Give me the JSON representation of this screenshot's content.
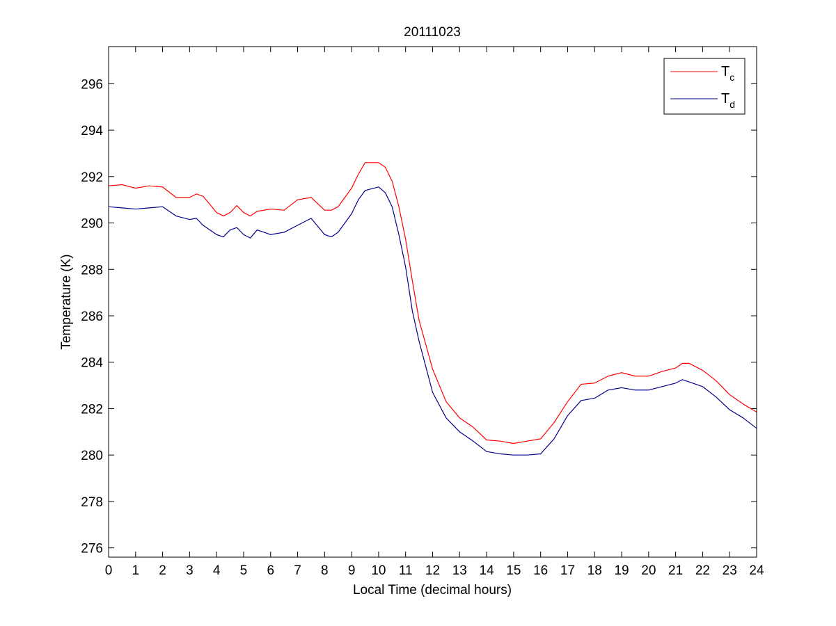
{
  "chart_data": {
    "type": "line",
    "title": "20111023",
    "xlabel": "Local Time (decimal hours)",
    "ylabel": "Temperature (K)",
    "xlim": [
      0,
      24
    ],
    "ylim": [
      275.6,
      297.6
    ],
    "xticks": [
      0,
      1,
      2,
      3,
      4,
      5,
      6,
      7,
      8,
      9,
      10,
      11,
      12,
      13,
      14,
      15,
      16,
      17,
      18,
      19,
      20,
      21,
      22,
      23,
      24
    ],
    "yticks": [
      276,
      278,
      280,
      282,
      284,
      286,
      288,
      290,
      292,
      294,
      296
    ],
    "grid": false,
    "legend_position": "top-right",
    "series": [
      {
        "name": "T",
        "subscript": "c",
        "color": "#ff0000",
        "x": [
          0,
          0.5,
          1,
          1.5,
          2,
          2.5,
          3,
          3.25,
          3.5,
          4,
          4.25,
          4.5,
          4.75,
          5,
          5.25,
          5.5,
          6,
          6.5,
          7,
          7.5,
          8,
          8.25,
          8.5,
          9,
          9.25,
          9.5,
          10,
          10.25,
          10.5,
          10.75,
          11,
          11.25,
          11.5,
          12,
          12.5,
          13,
          13.5,
          14,
          14.5,
          15,
          15.5,
          16,
          16.5,
          17,
          17.5,
          18,
          18.5,
          19,
          19.5,
          20,
          20.5,
          21,
          21.25,
          21.5,
          22,
          22.5,
          23,
          23.5,
          24
        ],
        "y": [
          291.6,
          291.65,
          291.5,
          291.6,
          291.55,
          291.1,
          291.1,
          291.25,
          291.15,
          290.45,
          290.3,
          290.45,
          290.75,
          290.45,
          290.3,
          290.5,
          290.6,
          290.55,
          291.0,
          291.1,
          290.55,
          290.55,
          290.7,
          291.5,
          292.1,
          292.6,
          292.6,
          292.4,
          291.8,
          290.7,
          289.3,
          287.5,
          285.8,
          283.7,
          282.3,
          281.6,
          281.2,
          280.65,
          280.6,
          280.5,
          280.6,
          280.7,
          281.4,
          282.3,
          283.05,
          283.1,
          283.4,
          283.55,
          283.4,
          283.4,
          283.6,
          283.75,
          283.95,
          283.95,
          283.65,
          283.2,
          282.6,
          282.2,
          281.85
        ]
      },
      {
        "name": "T",
        "subscript": "d",
        "color": "#00008b",
        "x": [
          0,
          0.5,
          1,
          1.5,
          2,
          2.5,
          3,
          3.25,
          3.5,
          4,
          4.25,
          4.5,
          4.75,
          5,
          5.25,
          5.5,
          6,
          6.5,
          7,
          7.5,
          8,
          8.25,
          8.5,
          9,
          9.25,
          9.5,
          10,
          10.25,
          10.5,
          10.75,
          11,
          11.25,
          11.5,
          12,
          12.5,
          13,
          13.5,
          14,
          14.5,
          15,
          15.5,
          16,
          16.5,
          17,
          17.5,
          18,
          18.5,
          19,
          19.5,
          20,
          20.5,
          21,
          21.25,
          21.5,
          22,
          22.5,
          23,
          23.5,
          24
        ],
        "y": [
          290.7,
          290.65,
          290.6,
          290.65,
          290.7,
          290.3,
          290.15,
          290.2,
          289.9,
          289.5,
          289.4,
          289.7,
          289.8,
          289.5,
          289.35,
          289.7,
          289.5,
          289.6,
          289.9,
          290.2,
          289.5,
          289.4,
          289.6,
          290.4,
          291.0,
          291.4,
          291.55,
          291.3,
          290.7,
          289.5,
          288.1,
          286.2,
          284.9,
          282.7,
          281.6,
          281.0,
          280.6,
          280.15,
          280.05,
          280.0,
          280.0,
          280.05,
          280.7,
          281.7,
          282.35,
          282.45,
          282.8,
          282.9,
          282.8,
          282.8,
          282.95,
          283.1,
          283.25,
          283.15,
          282.95,
          282.5,
          281.95,
          281.6,
          281.15
        ]
      }
    ]
  }
}
